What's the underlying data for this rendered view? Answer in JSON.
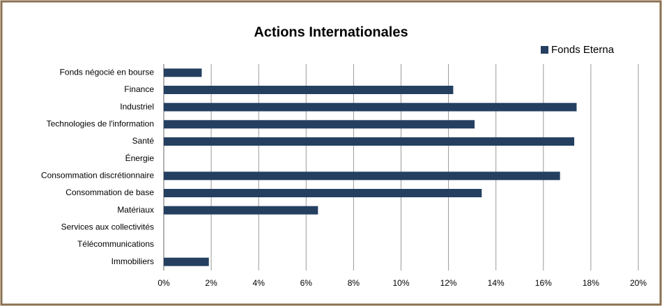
{
  "chart_data": {
    "type": "bar",
    "orientation": "horizontal",
    "title": "Actions Internationales",
    "categories": [
      "Fonds négocié en bourse",
      "Finance",
      "Industriel",
      "Technologies de l'information",
      "Santé",
      "Énergie",
      "Consommation discrétionnaire",
      "Consommation de base",
      "Matériaux",
      "Services aux collectivités",
      "Télécommunications",
      "Immobiliers"
    ],
    "series": [
      {
        "name": "Fonds Eterna",
        "color": "#243f60",
        "values": [
          1.6,
          12.2,
          17.4,
          13.1,
          17.3,
          0,
          16.7,
          13.4,
          6.5,
          0,
          0,
          1.9
        ]
      }
    ],
    "xlim": [
      0,
      20
    ],
    "xticks": [
      {
        "value": 0,
        "label": "0%"
      },
      {
        "value": 2,
        "label": "2%"
      },
      {
        "value": 4,
        "label": "4%"
      },
      {
        "value": 6,
        "label": "6%"
      },
      {
        "value": 8,
        "label": "8%"
      },
      {
        "value": 10,
        "label": "10%"
      },
      {
        "value": 12,
        "label": "12%"
      },
      {
        "value": 14,
        "label": "14%"
      },
      {
        "value": 16,
        "label": "16%"
      },
      {
        "value": 18,
        "label": "18%"
      },
      {
        "value": 20,
        "label": "20%"
      }
    ],
    "grid": true,
    "legend": "top-right"
  }
}
